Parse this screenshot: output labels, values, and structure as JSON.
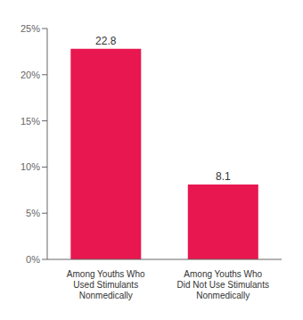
{
  "chart_data": {
    "type": "bar",
    "categories": [
      "Among Youths Who\nUsed Stimulants\nNonmedically",
      "Among Youths Who\nDid Not Use Stimulants\nNonmedically"
    ],
    "values": [
      22.8,
      8.1
    ],
    "value_labels": [
      "22.8",
      "8.1"
    ],
    "data_labels": true,
    "color": "#E8174F",
    "ylim": [
      0,
      25
    ],
    "yticks": [
      {
        "value": 0,
        "label": "0%"
      },
      {
        "value": 5,
        "label": "5%"
      },
      {
        "value": 10,
        "label": "10%"
      },
      {
        "value": 15,
        "label": "15%"
      },
      {
        "value": 20,
        "label": "20%"
      },
      {
        "value": 25,
        "label": "25%"
      }
    ],
    "grid": false
  }
}
